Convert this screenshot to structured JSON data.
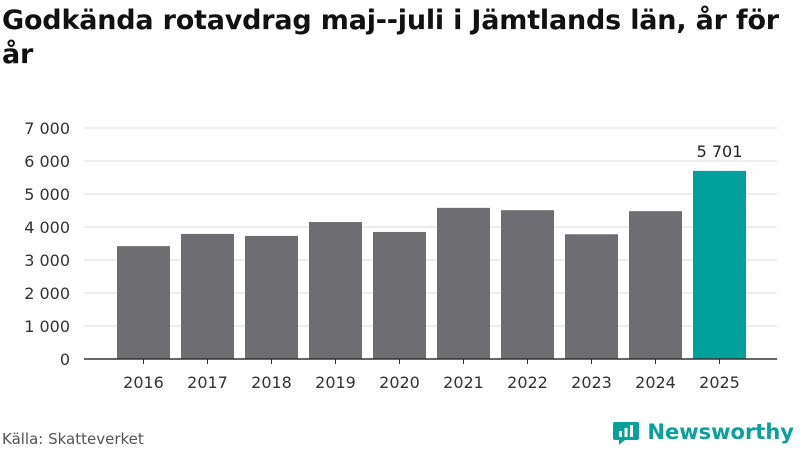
{
  "title": "Godkända rotavdrag maj--juli i Jämtlands län, år för år",
  "source": "Källa: Skatteverket",
  "brand": {
    "name": "Newsworthy",
    "icon": "newsworthy-logo-icon"
  },
  "colors": {
    "bar": "#6e6d72",
    "highlight": "#00a19a",
    "grid": "#dddddd",
    "axis": "#333333"
  },
  "chart_data": {
    "type": "bar",
    "categories": [
      "2016",
      "2017",
      "2018",
      "2019",
      "2020",
      "2021",
      "2022",
      "2023",
      "2024",
      "2025"
    ],
    "values": [
      3420,
      3790,
      3730,
      4150,
      3850,
      4580,
      4510,
      3780,
      4480,
      5701
    ],
    "highlight_index": 9,
    "data_labels": {
      "9": "5 701"
    },
    "ylim": [
      0,
      7000
    ],
    "yticks": [
      0,
      1000,
      2000,
      3000,
      4000,
      5000,
      6000,
      7000
    ],
    "ytick_labels": [
      "0",
      "1 000",
      "2 000",
      "3 000",
      "4 000",
      "5 000",
      "6 000",
      "7 000"
    ],
    "grid": true,
    "xlabel": "",
    "ylabel": ""
  }
}
